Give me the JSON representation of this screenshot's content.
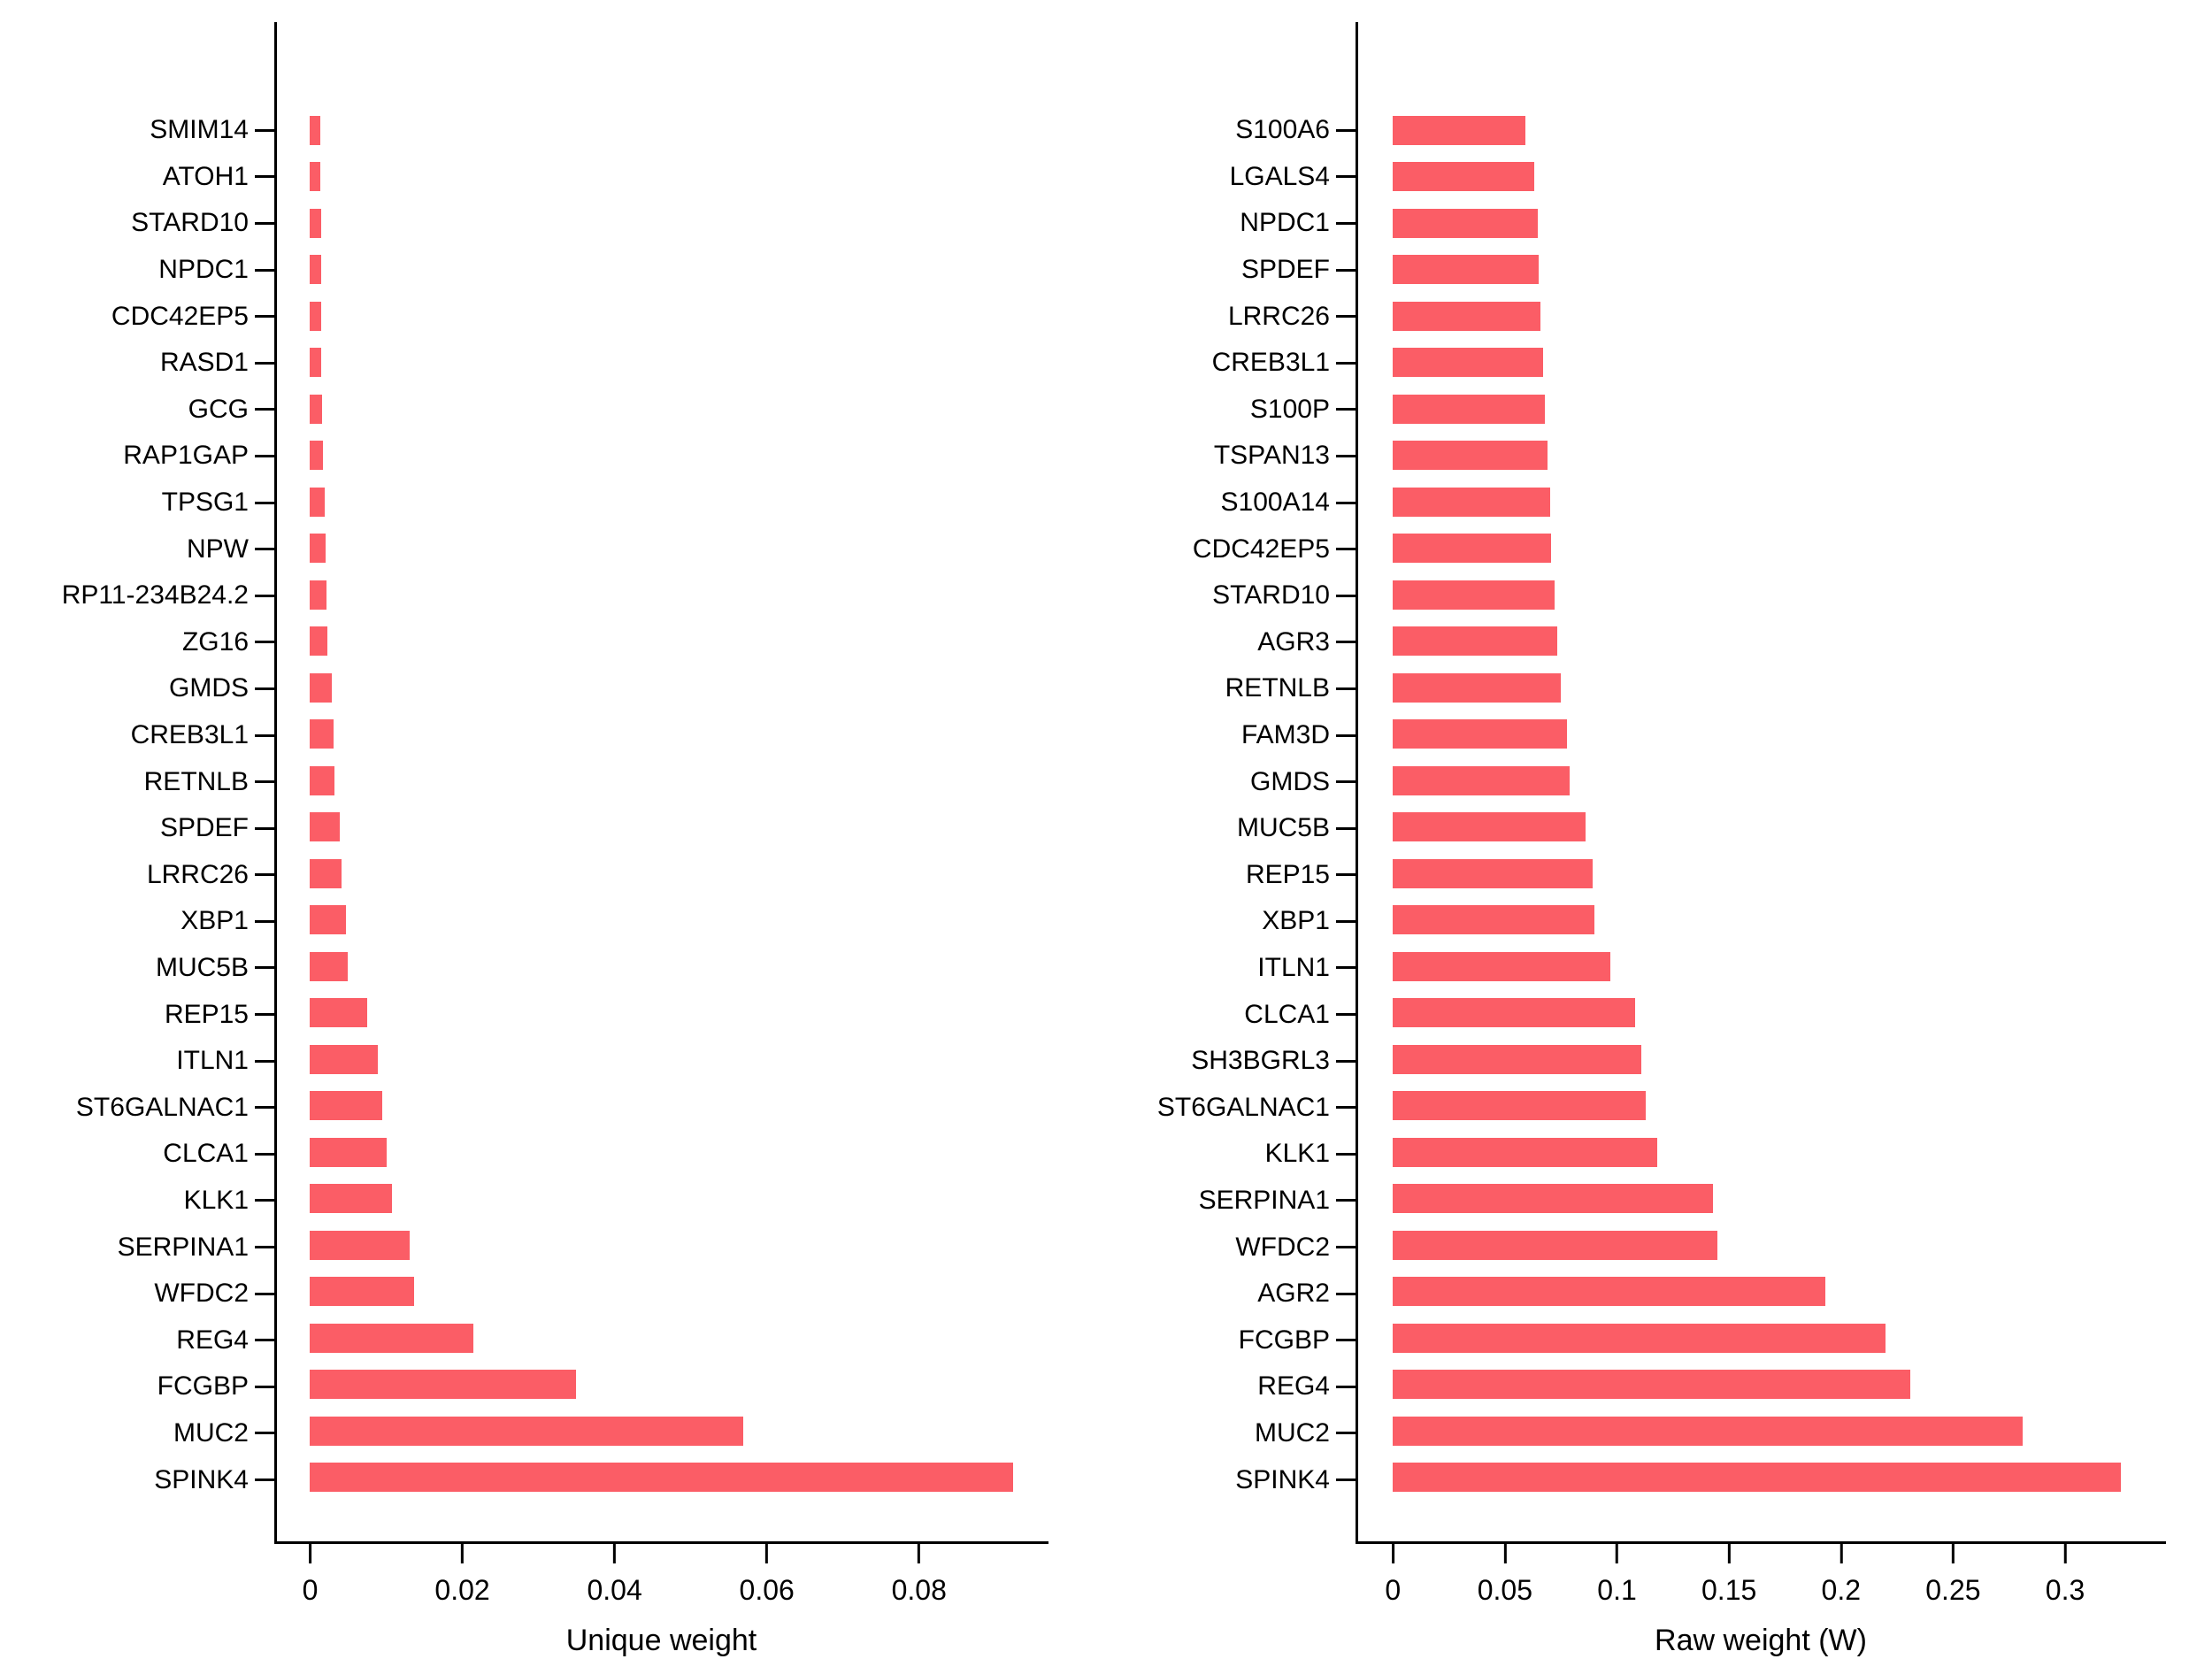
{
  "colors": {
    "bar": "#FB5D66",
    "axis": "#000000",
    "text": "#000000"
  },
  "chart_data": [
    {
      "type": "bar",
      "orientation": "horizontal",
      "xlabel": "Unique weight",
      "xmax": 0.097,
      "grid": false,
      "legend": false,
      "xticks": [
        {
          "v": 0,
          "label": "0"
        },
        {
          "v": 0.02,
          "label": "0.02"
        },
        {
          "v": 0.04,
          "label": "0.04"
        },
        {
          "v": 0.06,
          "label": "0.06"
        },
        {
          "v": 0.08,
          "label": "0.08"
        }
      ],
      "categories": [
        "SMIM14",
        "ATOH1",
        "STARD10",
        "NPDC1",
        "CDC42EP5",
        "RASD1",
        "GCG",
        "RAP1GAP",
        "TPSG1",
        "NPW",
        "RP11-234B24.2",
        "ZG16",
        "GMDS",
        "CREB3L1",
        "RETNLB",
        "SPDEF",
        "LRRC26",
        "XBP1",
        "MUC5B",
        "REP15",
        "ITLN1",
        "ST6GALNAC1",
        "CLCA1",
        "KLK1",
        "SERPINA1",
        "WFDC2",
        "REG4",
        "FCGBP",
        "MUC2",
        "SPINK4"
      ],
      "values": [
        0.0013,
        0.0013,
        0.0014,
        0.0014,
        0.0014,
        0.0015,
        0.0016,
        0.0017,
        0.0019,
        0.002,
        0.0021,
        0.0023,
        0.0029,
        0.0031,
        0.0032,
        0.0039,
        0.0041,
        0.0047,
        0.0049,
        0.0075,
        0.0089,
        0.0095,
        0.0101,
        0.0108,
        0.0131,
        0.0137,
        0.0214,
        0.0349,
        0.0569,
        0.0924
      ]
    },
    {
      "type": "bar",
      "orientation": "horizontal",
      "xlabel": "Raw weight (W)",
      "xmax": 0.345,
      "grid": false,
      "legend": false,
      "xticks": [
        {
          "v": 0,
          "label": "0"
        },
        {
          "v": 0.05,
          "label": "0.05"
        },
        {
          "v": 0.1,
          "label": "0.1"
        },
        {
          "v": 0.15,
          "label": "0.15"
        },
        {
          "v": 0.2,
          "label": "0.2"
        },
        {
          "v": 0.25,
          "label": "0.25"
        },
        {
          "v": 0.3,
          "label": "0.3"
        }
      ],
      "categories": [
        "S100A6",
        "LGALS4",
        "NPDC1",
        "SPDEF",
        "LRRC26",
        "CREB3L1",
        "S100P",
        "TSPAN13",
        "S100A14",
        "CDC42EP5",
        "STARD10",
        "AGR3",
        "RETNLB",
        "FAM3D",
        "GMDS",
        "MUC5B",
        "REP15",
        "XBP1",
        "ITLN1",
        "CLCA1",
        "SH3BGRL3",
        "ST6GALNAC1",
        "KLK1",
        "SERPINA1",
        "WFDC2",
        "AGR2",
        "FCGBP",
        "REG4",
        "MUC2",
        "SPINK4"
      ],
      "values": [
        0.059,
        0.063,
        0.0645,
        0.065,
        0.066,
        0.067,
        0.068,
        0.069,
        0.07,
        0.0705,
        0.072,
        0.0735,
        0.075,
        0.0775,
        0.079,
        0.086,
        0.089,
        0.09,
        0.097,
        0.108,
        0.111,
        0.113,
        0.118,
        0.143,
        0.145,
        0.193,
        0.22,
        0.231,
        0.281,
        0.325
      ]
    }
  ]
}
